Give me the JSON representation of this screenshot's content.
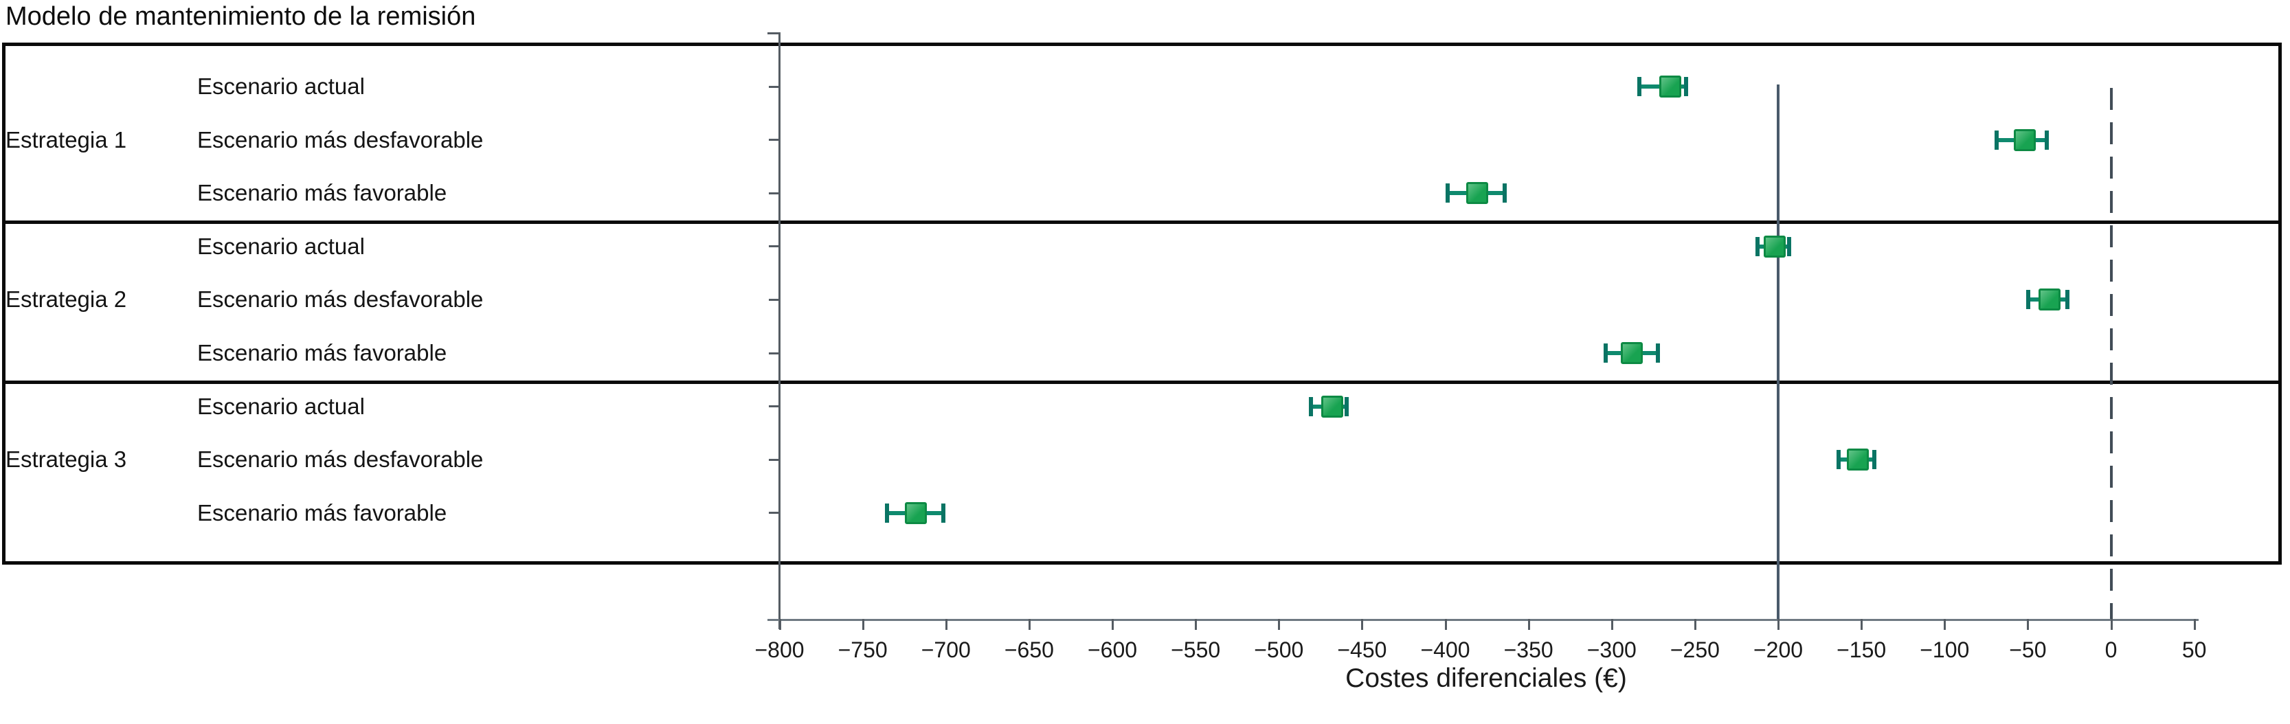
{
  "title": "Modelo de mantenimiento de la remisión",
  "chart_data": {
    "type": "scatter",
    "subtype": "forest-plot-with-error-bars",
    "title": "Modelo de mantenimiento de la remisión",
    "xlabel": "Costes diferenciales (€)",
    "ylabel": "",
    "xlim": [
      -800,
      50
    ],
    "grid": false,
    "x_ticks": [
      -800,
      -750,
      -700,
      -650,
      -600,
      -550,
      -500,
      -450,
      -400,
      -350,
      -300,
      -250,
      -200,
      -150,
      -100,
      -50,
      0,
      50
    ],
    "x_tick_labels": [
      "−800",
      "−750",
      "−700",
      "−650",
      "−600",
      "−550",
      "−500",
      "−450",
      "−400",
      "−350",
      "−300",
      "−250",
      "−200",
      "−150",
      "−100",
      "−50",
      "0",
      "50"
    ],
    "reference_lines": [
      {
        "x": -200,
        "style": "solid"
      },
      {
        "x": 0,
        "style": "dashed"
      }
    ],
    "groups": [
      {
        "label": "Estrategia 1",
        "rows": [
          {
            "label": "Escenario actual",
            "value": -265,
            "low": -284,
            "high": -255
          },
          {
            "label": "Escenario más desfavorable",
            "value": -52,
            "low": -69,
            "high": -38
          },
          {
            "label": "Escenario más favorable",
            "value": -381,
            "low": -399,
            "high": -364
          }
        ]
      },
      {
        "label": "Estrategia 2",
        "rows": [
          {
            "label": "Escenario actual",
            "value": -202,
            "low": -213,
            "high": -193
          },
          {
            "label": "Escenario más desfavorable",
            "value": -37,
            "low": -50,
            "high": -26
          },
          {
            "label": "Escenario más favorable",
            "value": -288,
            "low": -304,
            "high": -272
          }
        ]
      },
      {
        "label": "Estrategia 3",
        "rows": [
          {
            "label": "Escenario actual",
            "value": -468,
            "low": -481,
            "high": -459
          },
          {
            "label": "Escenario más desfavorable",
            "value": -152,
            "low": -164,
            "high": -142
          },
          {
            "label": "Escenario más favorable",
            "value": -718,
            "low": -736,
            "high": -701
          }
        ]
      }
    ],
    "marker": {
      "shape": "square",
      "fill": "#18a351",
      "fill_light": "#63c389",
      "border": "#0d8a44",
      "whisker": "#0f8a6e",
      "cap": "#0a7464"
    },
    "colors": {
      "reference_line_solid": "#4a5a6b",
      "reference_line_dashed": "#424d57",
      "axis_line": "#6f7982",
      "tick": "#555c63",
      "frame": "#0a0a0a"
    },
    "legend": null
  }
}
